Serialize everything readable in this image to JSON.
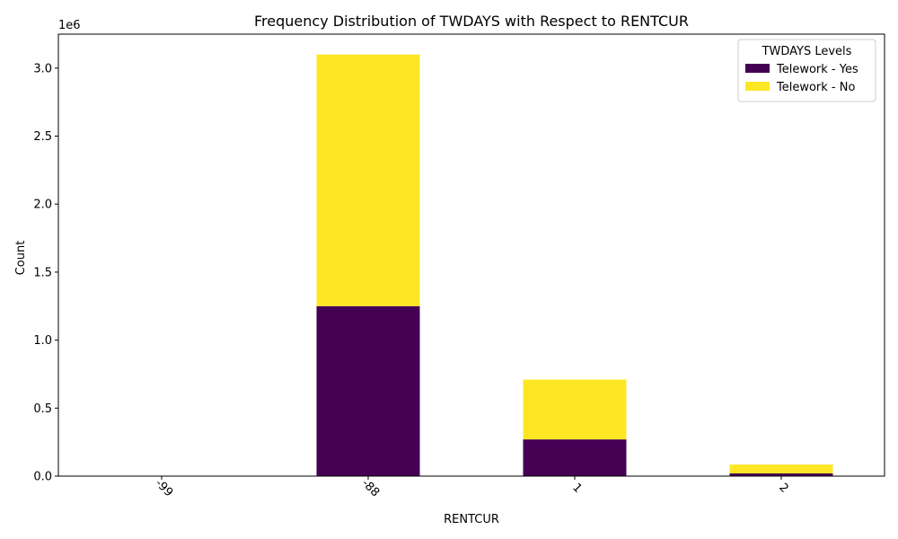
{
  "chart_data": {
    "type": "bar",
    "stacked": true,
    "title": "Frequency Distribution of TWDAYS with Respect to RENTCUR",
    "xlabel": "RENTCUR",
    "ylabel": "Count",
    "categories": [
      "-99",
      "-88",
      "1",
      "2"
    ],
    "series": [
      {
        "name": "Telework - Yes",
        "color": "#440154",
        "values": [
          0,
          1250000,
          270000,
          20000
        ]
      },
      {
        "name": "Telework - No",
        "color": "#fde725",
        "values": [
          0,
          1850000,
          440000,
          65000
        ]
      }
    ],
    "ylim": [
      0,
      3250000
    ],
    "yticks": [
      0,
      500000,
      1000000,
      1500000,
      2000000,
      2500000,
      3000000
    ],
    "ytick_labels": [
      "0.0",
      "0.5",
      "1.0",
      "1.5",
      "2.0",
      "2.5",
      "3.0"
    ],
    "y_offset_label": "1e6",
    "x_tick_rotation": 45,
    "grid": false,
    "legend": {
      "title": "TWDAYS Levels",
      "placement": "top-right"
    }
  }
}
